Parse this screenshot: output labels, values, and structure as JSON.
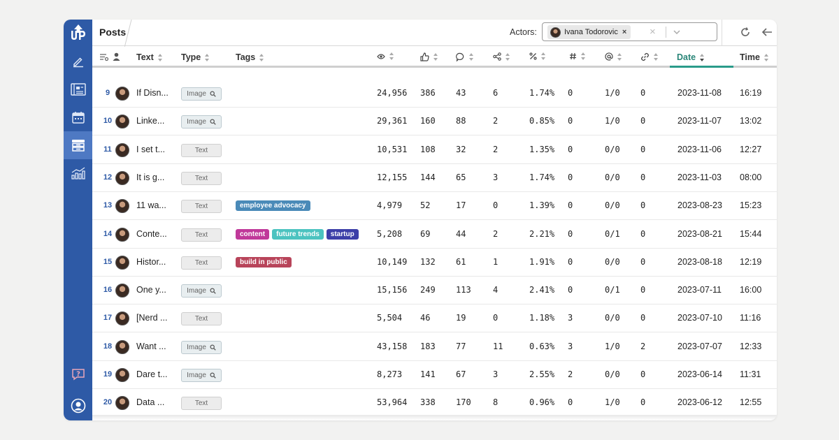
{
  "header": {
    "title": "Posts",
    "actors_label": "Actors:",
    "selected_actor": "Ivana Todorovic",
    "chip_remove": "×",
    "clear": "×"
  },
  "sidebar": {
    "logo": "logo-icon",
    "items": [
      {
        "icon": "pen-icon",
        "active": false
      },
      {
        "icon": "newspaper-icon",
        "active": false
      },
      {
        "icon": "calendar-icon",
        "active": false
      },
      {
        "icon": "archive-icon",
        "active": true
      },
      {
        "icon": "chart-icon",
        "active": false
      },
      {
        "icon": "help-icon",
        "active": false
      },
      {
        "icon": "user-circle-icon",
        "active": false
      }
    ]
  },
  "columns": {
    "text": "Text",
    "type": "Type",
    "tags": "Tags",
    "date": "Date",
    "time": "Time"
  },
  "colors": {
    "sidebar": "#2e5aa6",
    "sidebar_active": "#4e79c3",
    "date_underline": "#2a9b8a"
  },
  "rows": [
    {
      "num": "9",
      "text": "If Disn...",
      "type": "Image",
      "tags": [],
      "views": "24,956",
      "likes": "386",
      "comments": "43",
      "shares": "6",
      "pct": "1.74%",
      "hash": "0",
      "at": "1/0",
      "links": "0",
      "date": "2023-11-08",
      "time": "16:19"
    },
    {
      "num": "10",
      "text": "Linke...",
      "type": "Image",
      "tags": [],
      "views": "29,361",
      "likes": "160",
      "comments": "88",
      "shares": "2",
      "pct": "0.85%",
      "hash": "0",
      "at": "1/0",
      "links": "0",
      "date": "2023-11-07",
      "time": "13:02"
    },
    {
      "num": "11",
      "text": "I set t...",
      "type": "Text",
      "tags": [],
      "views": "10,531",
      "likes": "108",
      "comments": "32",
      "shares": "2",
      "pct": "1.35%",
      "hash": "0",
      "at": "0/0",
      "links": "0",
      "date": "2023-11-06",
      "time": "12:27"
    },
    {
      "num": "12",
      "text": "It is g...",
      "type": "Text",
      "tags": [],
      "views": "12,155",
      "likes": "144",
      "comments": "65",
      "shares": "3",
      "pct": "1.74%",
      "hash": "0",
      "at": "0/0",
      "links": "0",
      "date": "2023-11-03",
      "time": "08:00"
    },
    {
      "num": "13",
      "text": "11 wa...",
      "type": "Text",
      "tags": [
        {
          "label": "employee advocacy",
          "color": "#4a8ab8"
        }
      ],
      "views": "4,979",
      "likes": "52",
      "comments": "17",
      "shares": "0",
      "pct": "1.39%",
      "hash": "0",
      "at": "0/0",
      "links": "0",
      "date": "2023-08-23",
      "time": "15:23"
    },
    {
      "num": "14",
      "text": "Conte...",
      "type": "Text",
      "tags": [
        {
          "label": "content",
          "color": "#c0399a"
        },
        {
          "label": "future trends",
          "color": "#4cc3c0"
        },
        {
          "label": "startup",
          "color": "#3c3fa8"
        }
      ],
      "views": "5,208",
      "likes": "69",
      "comments": "44",
      "shares": "2",
      "pct": "2.21%",
      "hash": "0",
      "at": "0/1",
      "links": "0",
      "date": "2023-08-21",
      "time": "15:44"
    },
    {
      "num": "15",
      "text": "Histor...",
      "type": "Text",
      "tags": [
        {
          "label": "build in public",
          "color": "#b8445a"
        }
      ],
      "views": "10,149",
      "likes": "132",
      "comments": "61",
      "shares": "1",
      "pct": "1.91%",
      "hash": "0",
      "at": "0/0",
      "links": "0",
      "date": "2023-08-18",
      "time": "12:19"
    },
    {
      "num": "16",
      "text": "One y...",
      "type": "Image",
      "tags": [],
      "views": "15,156",
      "likes": "249",
      "comments": "113",
      "shares": "4",
      "pct": "2.41%",
      "hash": "0",
      "at": "0/1",
      "links": "0",
      "date": "2023-07-11",
      "time": "16:00"
    },
    {
      "num": "17",
      "text": "[Nerd ...",
      "type": "Text",
      "tags": [],
      "views": "5,504",
      "likes": "46",
      "comments": "19",
      "shares": "0",
      "pct": "1.18%",
      "hash": "3",
      "at": "0/0",
      "links": "0",
      "date": "2023-07-10",
      "time": "11:16"
    },
    {
      "num": "18",
      "text": "Want ...",
      "type": "Image",
      "tags": [],
      "views": "43,158",
      "likes": "183",
      "comments": "77",
      "shares": "11",
      "pct": "0.63%",
      "hash": "3",
      "at": "1/0",
      "links": "2",
      "date": "2023-07-07",
      "time": "12:33"
    },
    {
      "num": "19",
      "text": "Dare t...",
      "type": "Image",
      "tags": [],
      "views": "8,273",
      "likes": "141",
      "comments": "67",
      "shares": "3",
      "pct": "2.55%",
      "hash": "2",
      "at": "0/0",
      "links": "0",
      "date": "2023-06-14",
      "time": "11:31"
    },
    {
      "num": "20",
      "text": "Data ...",
      "type": "Text",
      "tags": [],
      "views": "53,964",
      "likes": "338",
      "comments": "170",
      "shares": "8",
      "pct": "0.96%",
      "hash": "0",
      "at": "1/0",
      "links": "0",
      "date": "2023-06-12",
      "time": "12:55"
    }
  ]
}
